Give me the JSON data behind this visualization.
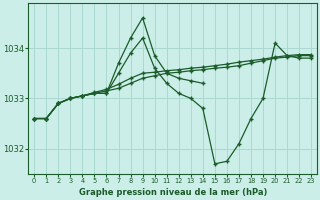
{
  "title": "Graphe pression niveau de la mer (hPa)",
  "background_color": "#cceee8",
  "grid_color": "#aad8d0",
  "line_color": "#1a5c2a",
  "xlim": [
    -0.5,
    23.5
  ],
  "ylim": [
    1031.5,
    1034.9
  ],
  "yticks": [
    1032,
    1033,
    1034
  ],
  "xticks": [
    0,
    1,
    2,
    3,
    4,
    5,
    6,
    7,
    8,
    9,
    10,
    11,
    12,
    13,
    14,
    15,
    16,
    17,
    18,
    19,
    20,
    21,
    22,
    23
  ],
  "series": [
    {
      "x": [
        0,
        1,
        2,
        3,
        4,
        5,
        6,
        7,
        8,
        9,
        10,
        11,
        12,
        13,
        14
      ],
      "y": [
        1032.6,
        1032.6,
        1032.9,
        1033.0,
        1033.05,
        1033.1,
        1033.1,
        1033.7,
        1034.2,
        1034.6,
        1033.85,
        1033.5,
        1033.4,
        1033.35,
        1033.3
      ]
    },
    {
      "x": [
        0,
        1,
        2,
        3,
        4,
        5,
        6,
        7,
        8,
        9,
        10,
        11,
        12,
        13,
        14,
        15,
        16,
        17,
        18,
        19,
        20,
        21,
        22,
        23
      ],
      "y": [
        1032.6,
        1032.6,
        1032.9,
        1033.0,
        1033.05,
        1033.1,
        1033.1,
        1033.5,
        1033.9,
        1034.2,
        1033.6,
        1033.3,
        1033.1,
        1033.0,
        1032.8,
        1031.7,
        1031.75,
        1032.1,
        1032.6,
        1033.0,
        1034.1,
        1033.85,
        1033.8,
        1033.8
      ]
    },
    {
      "x": [
        0,
        1,
        2,
        3,
        4,
        5,
        6,
        7,
        8,
        9,
        10,
        11,
        12,
        13,
        14,
        15,
        16,
        17,
        18,
        19,
        20,
        21,
        22,
        23
      ],
      "y": [
        1032.6,
        1032.6,
        1032.9,
        1033.0,
        1033.05,
        1033.1,
        1033.15,
        1033.2,
        1033.3,
        1033.4,
        1033.45,
        1033.5,
        1033.52,
        1033.55,
        1033.57,
        1033.6,
        1033.62,
        1033.65,
        1033.7,
        1033.75,
        1033.8,
        1033.82,
        1033.85,
        1033.85
      ]
    },
    {
      "x": [
        0,
        1,
        2,
        3,
        4,
        5,
        6,
        7,
        8,
        9,
        10,
        11,
        12,
        13,
        14,
        15,
        16,
        17,
        18,
        19,
        20,
        21,
        22,
        23
      ],
      "y": [
        1032.6,
        1032.6,
        1032.9,
        1033.0,
        1033.05,
        1033.12,
        1033.18,
        1033.28,
        1033.4,
        1033.5,
        1033.52,
        1033.55,
        1033.57,
        1033.6,
        1033.62,
        1033.65,
        1033.68,
        1033.72,
        1033.75,
        1033.78,
        1033.82,
        1033.85,
        1033.87,
        1033.87
      ]
    }
  ]
}
